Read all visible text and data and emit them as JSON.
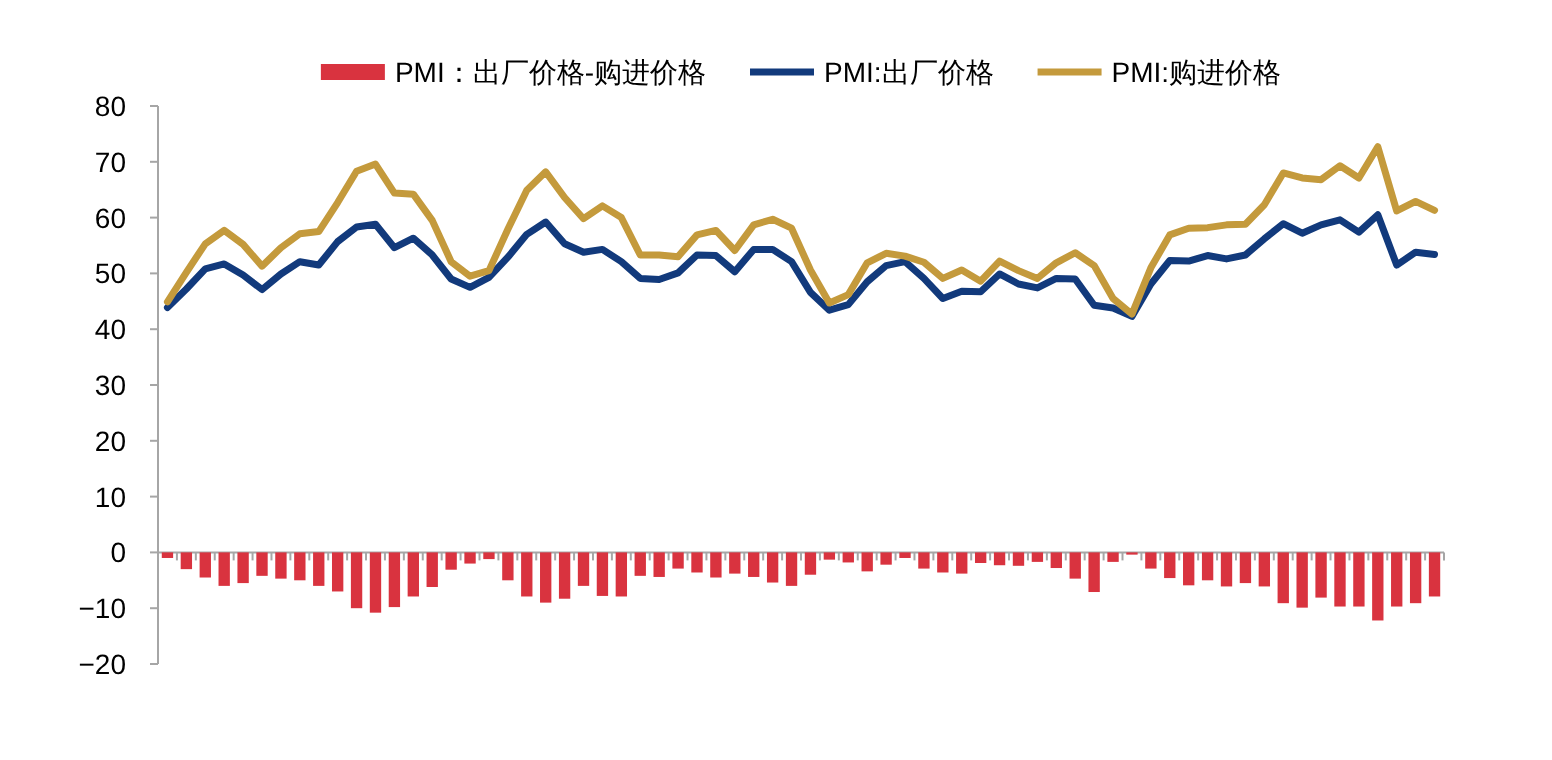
{
  "chart_data": {
    "type": "bar",
    "categories": [
      null,
      null,
      null,
      null,
      null,
      null,
      null,
      null,
      null,
      null,
      null,
      null,
      null,
      null,
      null,
      null,
      null,
      null,
      null,
      null,
      null,
      null,
      null,
      null,
      null,
      null,
      null,
      null,
      null,
      null,
      null,
      null,
      null,
      null,
      null,
      null,
      null,
      null,
      null,
      null,
      null,
      null,
      null,
      null,
      null,
      null,
      null,
      null,
      null,
      null,
      null,
      null,
      null,
      null,
      null,
      null,
      null,
      null,
      null,
      null,
      null,
      null,
      null,
      null,
      null,
      null,
      null,
      null
    ],
    "ylim": [
      -20,
      80
    ],
    "yticks": [
      -20,
      -10,
      0,
      10,
      20,
      30,
      40,
      50,
      60,
      70,
      80
    ],
    "legend": "top",
    "series": [
      {
        "name": "PMI：出厂价格-购进价格",
        "color": "#d9333f",
        "values": [
          -1,
          -3,
          -4.5,
          -6,
          -5.5,
          -4.2,
          -4.7,
          -5,
          -6,
          -7,
          -10,
          -10.8,
          -9.8,
          -7.9,
          -6.2,
          -3.1,
          -2,
          -1.2,
          -5,
          -7.9,
          -9,
          -8.3,
          -6,
          -7.8,
          -7.9,
          -4.2,
          -4.4,
          -2.9,
          -3.6,
          -4.5,
          -3.8,
          -4.4,
          -5.4,
          -6,
          -4,
          -1.3,
          -1.8,
          -3.4,
          -2.2,
          -1,
          -2.9,
          -3.6,
          -3.8,
          -1.9,
          -2.3,
          -2.4,
          -1.7,
          -2.8,
          -4.7,
          -7.1,
          -1.7,
          -0.4,
          -2.9,
          -4.6,
          -5.9,
          -5,
          -6.1,
          -5.5,
          -6.1,
          -9.1,
          -9.9,
          -8.1,
          -9.7,
          -9.7,
          -12.2,
          -9.7,
          -9.1,
          -7.9
        ]
      },
      {
        "name": "PMI:出厂价格",
        "type": "line",
        "color": "#123a7c",
        "values": [
          43.9,
          47.2,
          50.8,
          51.7,
          49.7,
          47.1,
          49.9,
          52.1,
          51.5,
          55.7,
          58.3,
          58.8,
          54.6,
          56.3,
          53.3,
          49,
          47.5,
          49.3,
          52.9,
          57,
          59.2,
          55.3,
          53.8,
          54.3,
          52.1,
          49.1,
          48.9,
          50.1,
          53.3,
          53.2,
          50.3,
          54.3,
          54.3,
          52.1,
          46.6,
          43.4,
          44.4,
          48.5,
          51.4,
          52.1,
          49.1,
          45.5,
          46.8,
          46.7,
          49.9,
          48.1,
          47.4,
          49.1,
          49,
          44.3,
          43.8,
          42.3,
          48.1,
          52.3,
          52.2,
          53.2,
          52.6,
          53.3,
          56.2,
          58.9,
          57.2,
          58.7,
          59.6,
          57.4,
          60.5,
          51.5,
          53.8,
          53.4
        ]
      },
      {
        "name": "PMI:购进价格",
        "type": "line",
        "color": "#c49a3c",
        "values": [
          44.9,
          50.2,
          55.3,
          57.7,
          55.2,
          51.3,
          54.6,
          57.1,
          57.5,
          62.7,
          68.3,
          69.6,
          64.4,
          64.2,
          59.5,
          52.1,
          49.5,
          50.5,
          57.9,
          64.9,
          68.2,
          63.6,
          59.8,
          62.1,
          60,
          53.3,
          53.3,
          53,
          56.9,
          57.7,
          54.1,
          58.7,
          59.7,
          58.1,
          50.6,
          44.7,
          46.2,
          51.9,
          53.6,
          53.1,
          52,
          49.1,
          50.6,
          48.6,
          52.2,
          50.5,
          49.1,
          51.9,
          53.7,
          51.4,
          45.5,
          42.7,
          51,
          56.9,
          58.1,
          58.2,
          58.7,
          58.8,
          62.3,
          68,
          67.1,
          66.8,
          69.3,
          67.1,
          72.7,
          61.2,
          62.9,
          61.3
        ]
      }
    ]
  }
}
